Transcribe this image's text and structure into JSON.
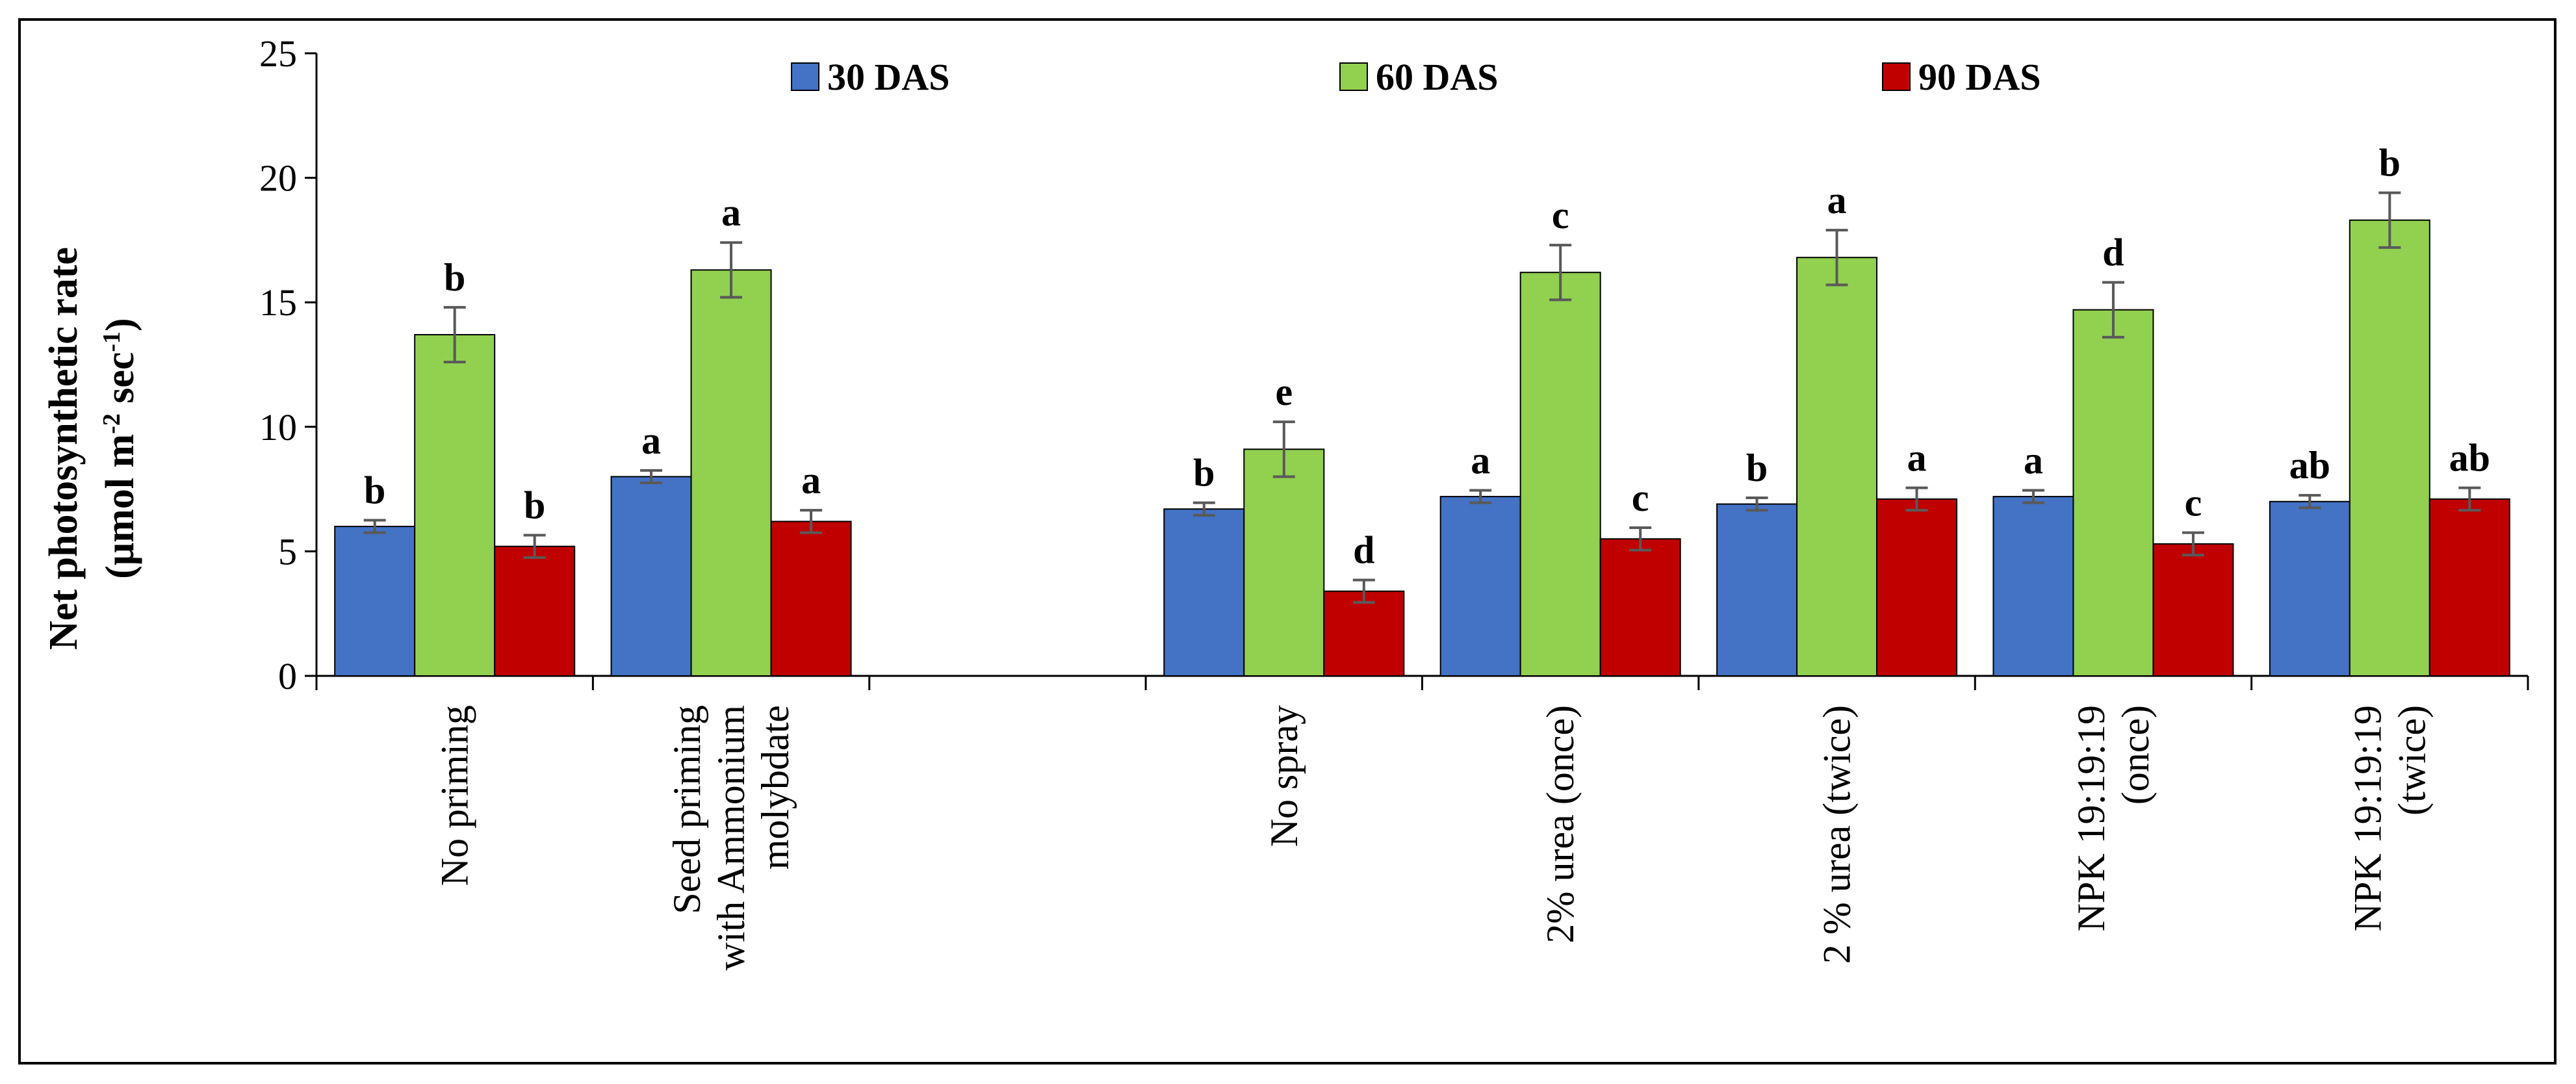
{
  "chart_data": {
    "type": "bar",
    "title": "",
    "ylabel_line1": "Net photosynthetic rate",
    "ylabel_line2_prefix": "(μmol m",
    "ylabel_line2_sup1": "-2",
    "ylabel_line2_mid": " sec",
    "ylabel_line2_sup2": "-1",
    "ylabel_line2_suffix": ")",
    "xlabel": "",
    "ylim": [
      0,
      25
    ],
    "yticks": [
      0,
      5,
      10,
      15,
      20,
      25
    ],
    "legend_position": "top",
    "categories": [
      [
        "No priming"
      ],
      [
        "Seed priming",
        "with Ammonium",
        "molybdate"
      ],
      [
        ""
      ],
      [
        "No spray"
      ],
      [
        "2% urea (once)"
      ],
      [
        "2 % urea (twice)"
      ],
      [
        "NPK 19:19:19",
        "(once)"
      ],
      [
        "NPK 19:19:19",
        "(twice)"
      ]
    ],
    "series": [
      {
        "name": "30 DAS",
        "color": "#4472C4",
        "values": [
          6.0,
          8.0,
          null,
          6.7,
          7.2,
          6.9,
          7.2,
          7.0
        ],
        "errors": [
          0.25,
          0.25,
          null,
          0.25,
          0.25,
          0.25,
          0.25,
          0.25
        ],
        "letters": [
          "b",
          "a",
          "",
          "b",
          "a",
          "b",
          "a",
          "ab"
        ]
      },
      {
        "name": "60 DAS",
        "color": "#92D050",
        "values": [
          13.7,
          16.3,
          null,
          9.1,
          16.2,
          16.8,
          14.7,
          18.3
        ],
        "errors": [
          1.1,
          1.1,
          null,
          1.1,
          1.1,
          1.1,
          1.1,
          1.1
        ],
        "letters": [
          "b",
          "a",
          "",
          "e",
          "c",
          "a",
          "d",
          "b"
        ]
      },
      {
        "name": "90 DAS",
        "color": "#C00000",
        "values": [
          5.2,
          6.2,
          null,
          3.4,
          5.5,
          7.1,
          5.3,
          7.1
        ],
        "errors": [
          0.45,
          0.45,
          null,
          0.45,
          0.45,
          0.45,
          0.45,
          0.45
        ],
        "letters": [
          "b",
          "a",
          "",
          "d",
          "c",
          "a",
          "c",
          "ab"
        ]
      }
    ]
  }
}
